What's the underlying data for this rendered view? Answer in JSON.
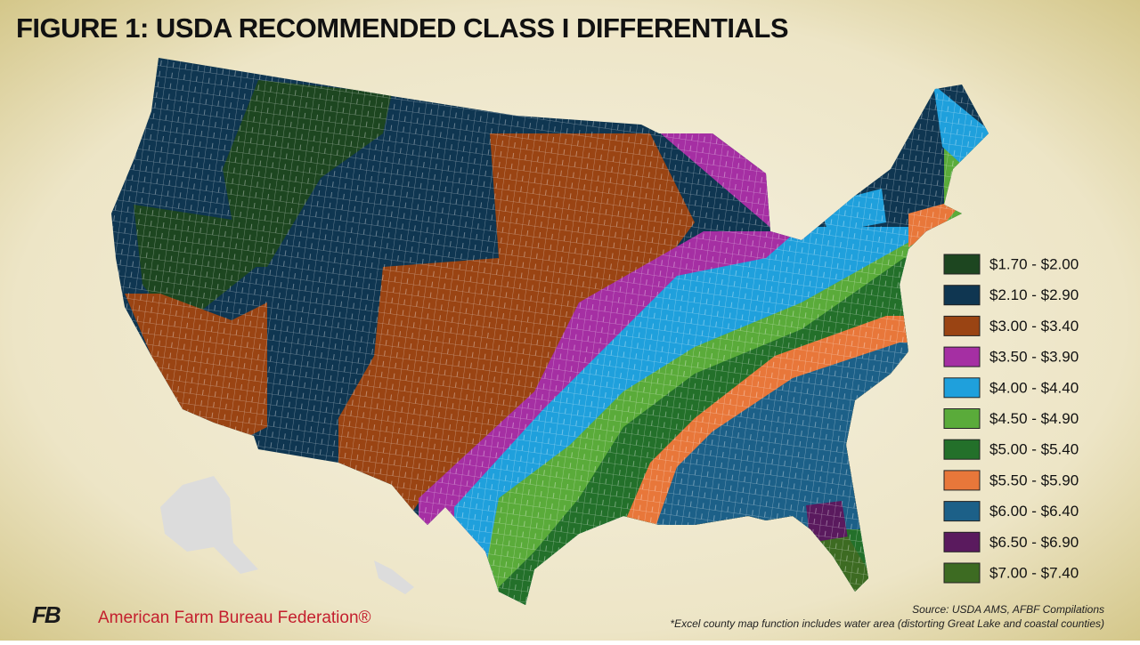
{
  "title": "FIGURE 1: USDA RECOMMENDED CLASS I DIFFERENTIALS",
  "legend": [
    {
      "label": "$1.70 - $2.00",
      "color": "#1d4620"
    },
    {
      "label": "$2.10 - $2.90",
      "color": "#0f3651"
    },
    {
      "label": "$3.00 - $3.40",
      "color": "#9a4413"
    },
    {
      "label": "$3.50 - $3.90",
      "color": "#a52fa3"
    },
    {
      "label": "$4.00 - $4.40",
      "color": "#1fa0dc"
    },
    {
      "label": "$4.50 - $4.90",
      "color": "#5aab3a"
    },
    {
      "label": "$5.00 - $5.40",
      "color": "#23702a"
    },
    {
      "label": "$5.50 - $5.90",
      "color": "#e8773a"
    },
    {
      "label": "$6.00 - $6.40",
      "color": "#1c6088"
    },
    {
      "label": "$6.50 - $6.90",
      "color": "#5a1a5e"
    },
    {
      "label": "$7.00 - $7.40",
      "color": "#3d6b22"
    }
  ],
  "source": "Source: USDA AMS, AFBF Compilations",
  "footnote": "*Excel county map function includes water area (distorting Great Lake and coastal counties)",
  "logo": {
    "mark": "FB",
    "name": "American Farm Bureau Federation®"
  }
}
